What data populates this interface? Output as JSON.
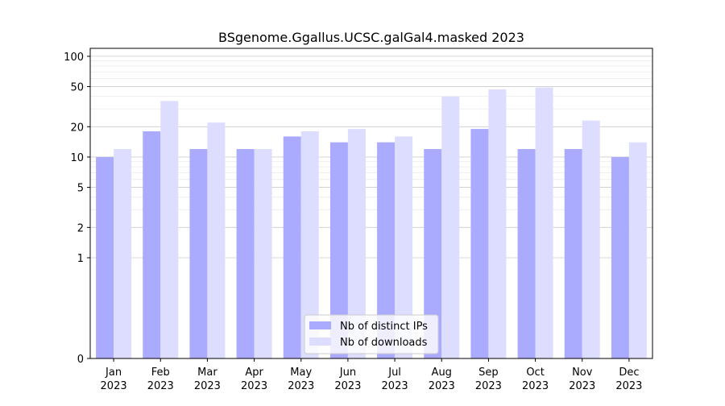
{
  "chart_data": {
    "type": "bar",
    "title": "BSgenome.Ggallus.UCSC.galGal4.masked 2023",
    "xlabel": "",
    "ylabel": "",
    "categories": [
      [
        "Jan",
        "2023"
      ],
      [
        "Feb",
        "2023"
      ],
      [
        "Mar",
        "2023"
      ],
      [
        "Apr",
        "2023"
      ],
      [
        "May",
        "2023"
      ],
      [
        "Jun",
        "2023"
      ],
      [
        "Jul",
        "2023"
      ],
      [
        "Aug",
        "2023"
      ],
      [
        "Sep",
        "2023"
      ],
      [
        "Oct",
        "2023"
      ],
      [
        "Nov",
        "2023"
      ],
      [
        "Dec",
        "2023"
      ]
    ],
    "series": [
      {
        "name": "Nb of distinct IPs",
        "color": "#aaaaff",
        "values": [
          10,
          18,
          12,
          12,
          16,
          14,
          14,
          12,
          19,
          12,
          12,
          10
        ]
      },
      {
        "name": "Nb of downloads",
        "color": "#ddddff",
        "values": [
          12,
          36,
          22,
          12,
          18,
          19,
          16,
          40,
          47,
          49,
          23,
          14
        ]
      }
    ],
    "y_scale": "symlog",
    "ylim": [
      0,
      120
    ],
    "yticks": [
      0,
      1,
      2,
      5,
      10,
      20,
      50,
      100
    ],
    "grid": true,
    "legend_position": "bottom-center"
  }
}
